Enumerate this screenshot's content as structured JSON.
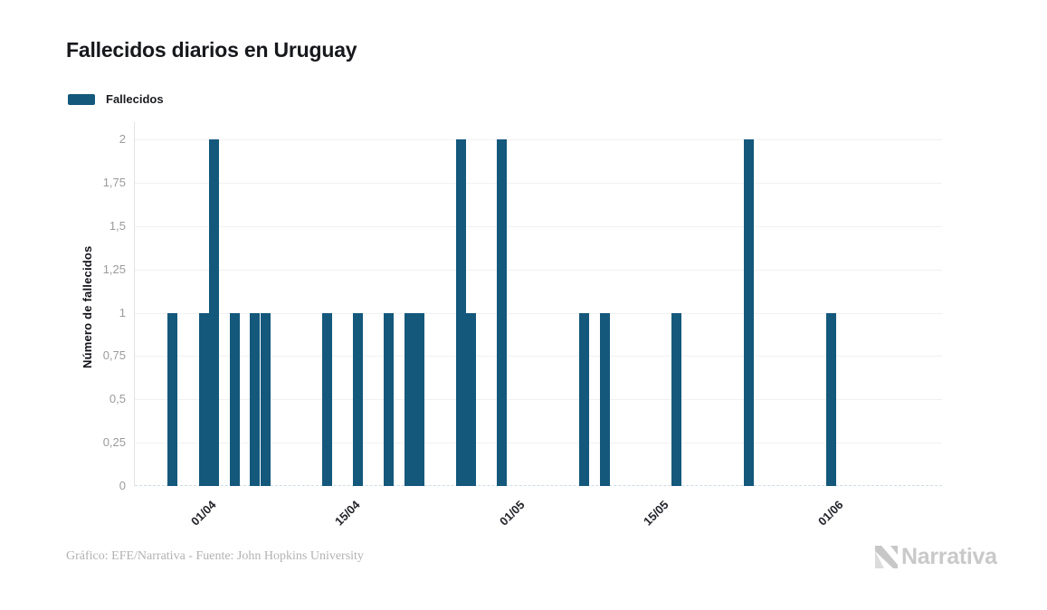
{
  "title": "Fallecidos diarios en Uruguay",
  "legend": {
    "items": [
      {
        "label": "Fallecidos",
        "color": "#14587c"
      }
    ]
  },
  "chart_data": {
    "type": "bar",
    "title": "Fallecidos diarios en Uruguay",
    "xlabel": "",
    "ylabel": "Número de fallecidos",
    "ylim": [
      0,
      2
    ],
    "grid": true,
    "legend_position": "top-left",
    "bar_color": "#14587c",
    "x_axis_range": {
      "start": "25/03",
      "end": "11/06",
      "year": 2020
    },
    "x_ticks": [
      {
        "label": "01/04",
        "date": "01/04"
      },
      {
        "label": "15/04",
        "date": "15/04"
      },
      {
        "label": "01/05",
        "date": "01/05"
      },
      {
        "label": "15/05",
        "date": "15/05"
      },
      {
        "label": "01/06",
        "date": "01/06"
      }
    ],
    "y_ticks": [
      {
        "label": "0",
        "value": 0
      },
      {
        "label": "0,25",
        "value": 0.25
      },
      {
        "label": "0,5",
        "value": 0.5
      },
      {
        "label": "0,75",
        "value": 0.75
      },
      {
        "label": "1",
        "value": 1
      },
      {
        "label": "1,25",
        "value": 1.25
      },
      {
        "label": "1,5",
        "value": 1.5
      },
      {
        "label": "1,75",
        "value": 1.75
      },
      {
        "label": "2",
        "value": 2
      }
    ],
    "series": [
      {
        "name": "Fallecidos",
        "color": "#14587c",
        "points": [
          {
            "date": "28/03",
            "value": 1
          },
          {
            "date": "31/03",
            "value": 1
          },
          {
            "date": "01/04",
            "value": 2
          },
          {
            "date": "03/04",
            "value": 1
          },
          {
            "date": "05/04",
            "value": 1
          },
          {
            "date": "06/04",
            "value": 1
          },
          {
            "date": "12/04",
            "value": 1
          },
          {
            "date": "15/04",
            "value": 1
          },
          {
            "date": "18/04",
            "value": 1
          },
          {
            "date": "20/04",
            "value": 1
          },
          {
            "date": "21/04",
            "value": 1
          },
          {
            "date": "25/04",
            "value": 2
          },
          {
            "date": "26/04",
            "value": 1
          },
          {
            "date": "29/04",
            "value": 2
          },
          {
            "date": "07/05",
            "value": 1
          },
          {
            "date": "09/05",
            "value": 1
          },
          {
            "date": "16/05",
            "value": 1
          },
          {
            "date": "23/05",
            "value": 2
          },
          {
            "date": "31/05",
            "value": 1
          }
        ]
      }
    ]
  },
  "footer": {
    "credit": "Gráfico: EFE/Narrativa - Fuente: John Hopkins University"
  },
  "brand": {
    "name": "Narrativa"
  }
}
